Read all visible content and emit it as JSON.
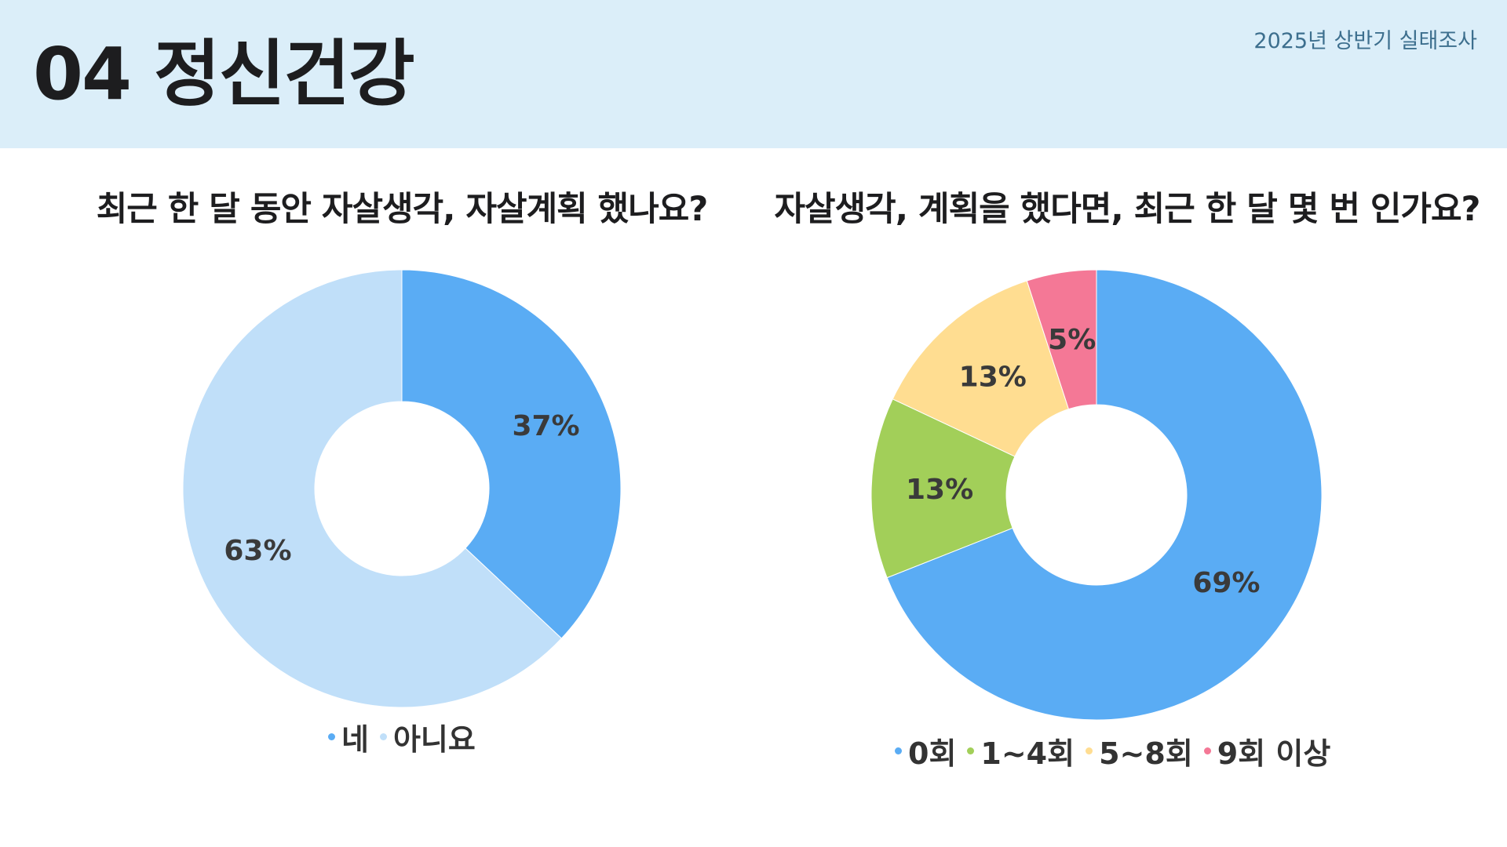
{
  "header": {
    "title": "04 정신건강",
    "survey_label": "2025년 상반기 실태조사"
  },
  "chart_data": [
    {
      "type": "pie",
      "donut": true,
      "title": "최근 한 달 동안 자살생각, 자살계획 했나요?",
      "categories": [
        "네",
        "아니요"
      ],
      "values": [
        37,
        63
      ],
      "labels": [
        "37%",
        "63%"
      ],
      "colors": [
        "#5aacf4",
        "#c0dff9"
      ],
      "legend_position": "bottom"
    },
    {
      "type": "pie",
      "donut": true,
      "title": "자살생각, 계획을 했다면, 최근 한 달 몇 번 인가요?",
      "categories": [
        "0회",
        "1~4회",
        "5~8회",
        "9회 이상"
      ],
      "values": [
        69,
        13,
        13,
        5
      ],
      "labels": [
        "69%",
        "13%",
        "13%",
        "5%"
      ],
      "colors": [
        "#5aacf4",
        "#a2cf59",
        "#ffdd91",
        "#f47896"
      ],
      "legend_position": "bottom"
    }
  ]
}
